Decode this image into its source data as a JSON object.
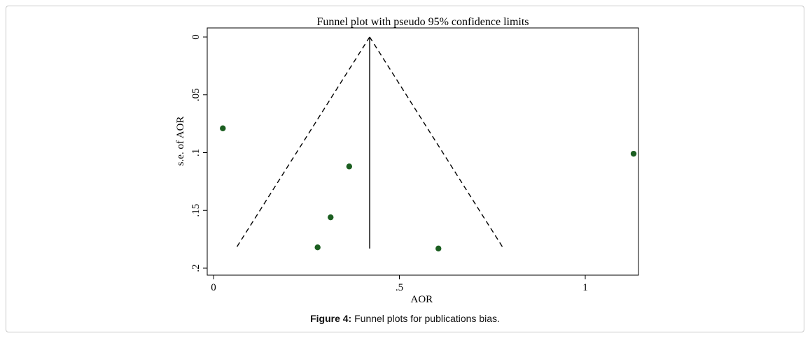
{
  "chart_data": {
    "type": "scatter",
    "title": "Funnel plot with pseudo 95% confidence limits",
    "xlabel": "AOR",
    "ylabel": "s.e. of AOR",
    "x_ticks": [
      {
        "value": 0,
        "label": "0"
      },
      {
        "value": 0.5,
        "label": ".5"
      },
      {
        "value": 1,
        "label": "1"
      }
    ],
    "y_ticks": [
      {
        "value": 0,
        "label": "0"
      },
      {
        "value": 0.05,
        "label": ".05"
      },
      {
        "value": 0.1,
        "label": ".1"
      },
      {
        "value": 0.15,
        "label": ".15"
      },
      {
        "value": 0.2,
        "label": ".2"
      }
    ],
    "xlim": [
      -0.01,
      1.14
    ],
    "ylim": [
      0.2,
      0
    ],
    "y_reversed": true,
    "points": [
      {
        "x": 0.025,
        "y": 0.079
      },
      {
        "x": 0.365,
        "y": 0.112
      },
      {
        "x": 0.315,
        "y": 0.156
      },
      {
        "x": 0.28,
        "y": 0.182
      },
      {
        "x": 0.605,
        "y": 0.183
      },
      {
        "x": 1.13,
        "y": 0.101
      }
    ],
    "point_color": "#1b5e20",
    "pooled_estimate": 0.42,
    "funnel_max_se": 0.183,
    "funnel_left_x_at_max_se": 0.06,
    "funnel_right_x_at_max_se": 0.78
  },
  "caption": {
    "label": "Figure 4:",
    "text": " Funnel plots for publications bias."
  }
}
